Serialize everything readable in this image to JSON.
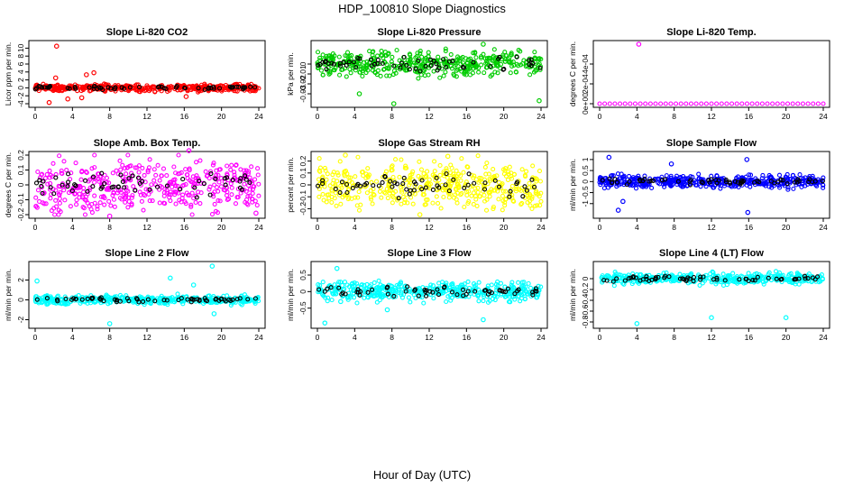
{
  "figure": {
    "title": "HDP_100810  Slope Diagnostics",
    "xlabel": "Hour of Day (UTC)"
  },
  "chart_data": [
    {
      "type": "scatter",
      "title": "Slope Li-820 CO2",
      "ylabel": "Licor ppm per min.",
      "color": "#ff0000",
      "xlim": [
        0,
        24
      ],
      "ylim": [
        -4,
        11
      ],
      "xticks": [
        0,
        4,
        8,
        12,
        16,
        20,
        24
      ],
      "yticks": [
        -4,
        -2,
        0,
        2,
        4,
        6,
        8,
        10
      ],
      "spread": 0.6,
      "outliers": [
        [
          2.3,
          10.5
        ],
        [
          1.5,
          -3.7
        ],
        [
          2.2,
          2.5
        ],
        [
          5.5,
          3.3
        ],
        [
          6.3,
          3.8
        ],
        [
          3.5,
          -2.8
        ],
        [
          5.0,
          -2.5
        ],
        [
          16.2,
          -2.2
        ]
      ]
    },
    {
      "type": "scatter",
      "title": "Slope Li-820 Pressure",
      "ylabel": "kPa per min.",
      "color": "#00cc00",
      "xlim": [
        0,
        24
      ],
      "ylim": [
        -0.04,
        0.02
      ],
      "xticks": [
        0,
        4,
        8,
        12,
        16,
        20,
        24
      ],
      "yticks": [
        -0.03,
        -0.02,
        -0.01,
        0.0
      ],
      "spread": 0.009,
      "outliers": [
        [
          8.2,
          -0.04
        ],
        [
          17.8,
          0.02
        ],
        [
          23.8,
          -0.037
        ],
        [
          4.5,
          -0.03
        ]
      ]
    },
    {
      "type": "scatter",
      "title": "Slope Li-820 Temp.",
      "ylabel": "degrees C per min.",
      "color": "#ff00ff",
      "xlim": [
        0,
        24
      ],
      "ylim": [
        0,
        0.0006
      ],
      "xticks": [
        0,
        4,
        8,
        12,
        16,
        20,
        24
      ],
      "yticks": [
        0,
        0.0002,
        0.0004
      ],
      "ytick_labels": [
        "0e+00",
        "2e-04",
        "4e-04"
      ],
      "flat": true,
      "spread": 0,
      "outliers": [
        [
          4.2,
          0.0006
        ]
      ]
    },
    {
      "type": "scatter",
      "title": "Slope Amb. Box Temp.",
      "ylabel": "degrees C per min.",
      "color": "#ff00ff",
      "xlim": [
        0,
        24
      ],
      "ylim": [
        -0.2,
        0.2
      ],
      "xticks": [
        0,
        4,
        8,
        12,
        16,
        20,
        24
      ],
      "yticks": [
        -0.2,
        -0.1,
        0.0,
        0.1,
        0.2
      ],
      "spread": 0.12,
      "outliers": [
        [
          8.0,
          -0.21
        ],
        [
          16.5,
          0.23
        ],
        [
          23.7,
          -0.19
        ]
      ]
    },
    {
      "type": "scatter",
      "title": "Slope Gas Stream RH",
      "ylabel": "percent per min.",
      "color": "#ffff00",
      "xlim": [
        0,
        24
      ],
      "ylim": [
        -0.25,
        0.25
      ],
      "xticks": [
        0,
        4,
        8,
        12,
        16,
        20,
        24
      ],
      "yticks": [
        -0.2,
        -0.1,
        0.0,
        0.1,
        0.2
      ],
      "spread": 0.14,
      "outliers": [
        [
          3.0,
          0.25
        ],
        [
          11.0,
          -0.25
        ],
        [
          14.0,
          0.24
        ]
      ]
    },
    {
      "type": "scatter",
      "title": "Slope Sample Flow",
      "ylabel": "ml/min per min.",
      "color": "#0000ff",
      "xlim": [
        0,
        24
      ],
      "ylim": [
        -1.5,
        1.2
      ],
      "xticks": [
        0,
        4,
        8,
        12,
        16,
        20,
        24
      ],
      "yticks": [
        -1.0,
        -0.5,
        0.0,
        0.5,
        1.0
      ],
      "spread": 0.2,
      "outliers": [
        [
          1.0,
          1.1
        ],
        [
          2.0,
          -1.3
        ],
        [
          15.8,
          1.0
        ],
        [
          15.9,
          -1.4
        ],
        [
          2.5,
          -0.9
        ],
        [
          7.7,
          0.8
        ]
      ]
    },
    {
      "type": "scatter",
      "title": "Slope Line 2 Flow",
      "ylabel": "ml/min per min.",
      "color": "#00ffff",
      "xlim": [
        0,
        24
      ],
      "ylim": [
        -2.5,
        3.5
      ],
      "xticks": [
        0,
        4,
        8,
        12,
        16,
        20,
        24
      ],
      "yticks": [
        -2,
        0,
        2
      ],
      "spread": 0.3,
      "outliers": [
        [
          8.0,
          -2.4
        ],
        [
          19.0,
          3.4
        ],
        [
          0.2,
          1.9
        ],
        [
          14.5,
          2.2
        ],
        [
          19.2,
          -1.4
        ],
        [
          17.0,
          1.5
        ]
      ]
    },
    {
      "type": "scatter",
      "title": "Slope Line 3 Flow",
      "ylabel": "ml/min per min.",
      "color": "#00ffff",
      "xlim": [
        0,
        24
      ],
      "ylim": [
        -1.0,
        0.8
      ],
      "xticks": [
        0,
        4,
        8,
        12,
        16,
        20,
        24
      ],
      "yticks": [
        -0.5,
        0.0,
        0.5
      ],
      "spread": 0.2,
      "outliers": [
        [
          0.8,
          -0.95
        ],
        [
          2.1,
          0.7
        ],
        [
          7.5,
          -0.55
        ],
        [
          17.8,
          -0.85
        ],
        [
          2.5,
          -0.3
        ]
      ]
    },
    {
      "type": "scatter",
      "title": "Slope Line 4 (LT) Flow",
      "ylabel": "ml/min per min.",
      "color": "#00ffff",
      "xlim": [
        0,
        24
      ],
      "ylim": [
        -0.85,
        0.25
      ],
      "xticks": [
        0,
        4,
        8,
        12,
        16,
        20,
        24
      ],
      "yticks": [
        -0.8,
        -0.6,
        -0.4,
        -0.2,
        0.0
      ],
      "spread": 0.07,
      "outliers": [
        [
          4.0,
          -0.83
        ],
        [
          12.0,
          -0.72
        ],
        [
          20.0,
          -0.72
        ]
      ]
    }
  ]
}
